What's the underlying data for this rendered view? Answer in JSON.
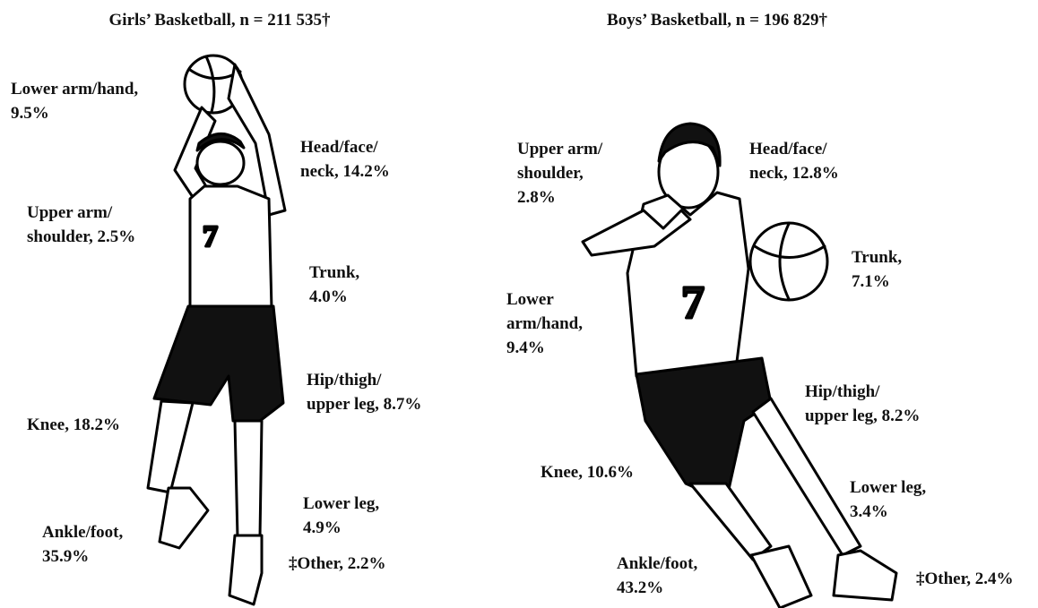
{
  "panels": [
    {
      "title": "Girls’ Basketball, n = 211 535†",
      "labels": [
        {
          "lines": [
            "Lower arm/hand,",
            "9.5%"
          ]
        },
        {
          "lines": [
            "Head/face/",
            "neck, 14.2%"
          ]
        },
        {
          "lines": [
            "Upper arm/",
            "shoulder, 2.5%"
          ]
        },
        {
          "lines": [
            "Trunk,",
            "4.0%"
          ]
        },
        {
          "lines": [
            "Hip/thigh/",
            "upper leg, 8.7%"
          ]
        },
        {
          "lines": [
            "Knee, 18.2%"
          ]
        },
        {
          "lines": [
            "Lower leg,",
            "4.9%"
          ]
        },
        {
          "lines": [
            "Ankle/foot,",
            "35.9%"
          ]
        },
        {
          "lines": [
            "‡Other, 2.2%"
          ]
        }
      ]
    },
    {
      "title": "Boys’ Basketball, n = 196 829†",
      "labels": [
        {
          "lines": [
            "Upper arm/",
            "shoulder,",
            "2.8%"
          ]
        },
        {
          "lines": [
            "Head/face/",
            "neck, 12.8%"
          ]
        },
        {
          "lines": [
            "Trunk,",
            "7.1%"
          ]
        },
        {
          "lines": [
            "Lower",
            "arm/hand,",
            "9.4%"
          ]
        },
        {
          "lines": [
            "Hip/thigh/",
            "upper leg, 8.2%"
          ]
        },
        {
          "lines": [
            "Knee, 10.6%"
          ]
        },
        {
          "lines": [
            "Lower leg,",
            "3.4%"
          ]
        },
        {
          "lines": [
            "Ankle/foot,",
            "43.2%"
          ]
        },
        {
          "lines": [
            "‡Other, 2.4%"
          ]
        }
      ]
    }
  ]
}
